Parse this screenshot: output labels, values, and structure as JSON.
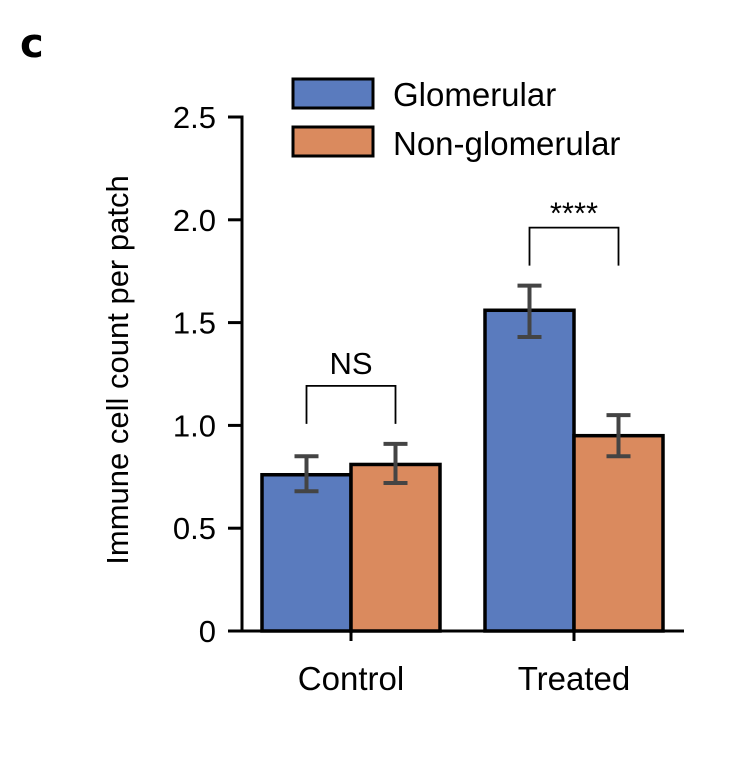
{
  "panel_label": "c",
  "chart_data": {
    "type": "bar",
    "title": "",
    "xlabel": "",
    "ylabel": "Immune cell count per patch",
    "ylim": [
      0,
      2.5
    ],
    "yticks": [
      0,
      0.5,
      1.0,
      1.5,
      2.0,
      2.5
    ],
    "ytick_labels": [
      "0",
      "0.5",
      "1.0",
      "1.5",
      "2.0",
      "2.5"
    ],
    "categories": [
      "Control",
      "Treated"
    ],
    "series": [
      {
        "name": "Glomerular",
        "color": "#5A7BBE",
        "values": [
          0.76,
          1.56
        ],
        "error_low": [
          0.68,
          1.43
        ],
        "error_high": [
          0.85,
          1.68
        ]
      },
      {
        "name": "Non-glomerular",
        "color": "#DA8A5E",
        "values": [
          0.81,
          0.95
        ],
        "error_low": [
          0.72,
          0.85
        ],
        "error_high": [
          0.91,
          1.05
        ]
      }
    ],
    "legend": {
      "position": "top-right",
      "entries": [
        "Glomerular",
        "Non-glomerular"
      ]
    },
    "annotations": [
      {
        "category": "Control",
        "label": "NS"
      },
      {
        "category": "Treated",
        "label": "****"
      }
    ],
    "grid": false
  }
}
